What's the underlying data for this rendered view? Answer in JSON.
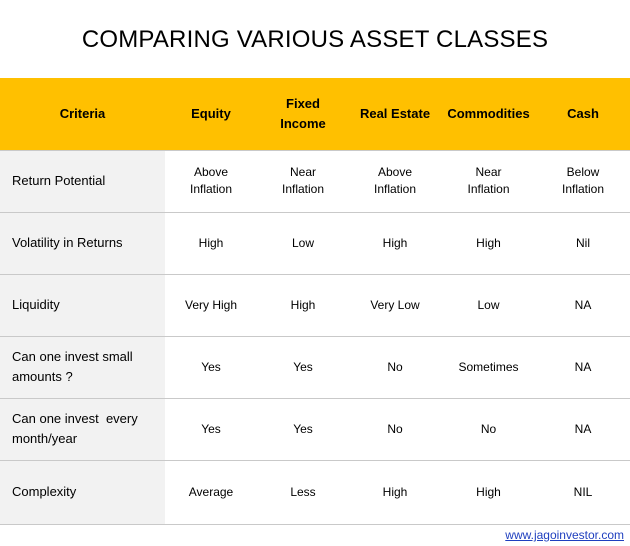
{
  "title": "COMPARING VARIOUS ASSET CLASSES",
  "header": {
    "criteria": "Criteria",
    "columns": [
      "Equity",
      "Fixed Income",
      "Real Estate",
      "Commodities",
      "Cash"
    ]
  },
  "rows": [
    {
      "criteria": "Return Potential",
      "values": [
        "Above Inflation",
        "Near Inflation",
        "Above Inflation",
        "Near Inflation",
        "Below Inflation"
      ]
    },
    {
      "criteria": "Volatility in Returns",
      "values": [
        "High",
        "Low",
        "High",
        "High",
        "Nil"
      ]
    },
    {
      "criteria": "Liquidity",
      "values": [
        "Very High",
        "High",
        "Very Low",
        "Low",
        "NA"
      ]
    },
    {
      "criteria": "Can one invest small amounts ?",
      "values": [
        "Yes",
        "Yes",
        "No",
        "Sometimes",
        "NA"
      ]
    },
    {
      "criteria": "Can one invest  every month/year",
      "values": [
        "Yes",
        "Yes",
        "No",
        "No",
        "NA"
      ]
    },
    {
      "criteria": "Complexity",
      "values": [
        "Average",
        "Less",
        "High",
        "High",
        "NIL"
      ]
    }
  ],
  "credit": "www.jagoinvestor.com",
  "colors": {
    "header_bg": "#ffc000",
    "criteria_bg": "#f2f2f2",
    "link": "#1f3fbf"
  }
}
